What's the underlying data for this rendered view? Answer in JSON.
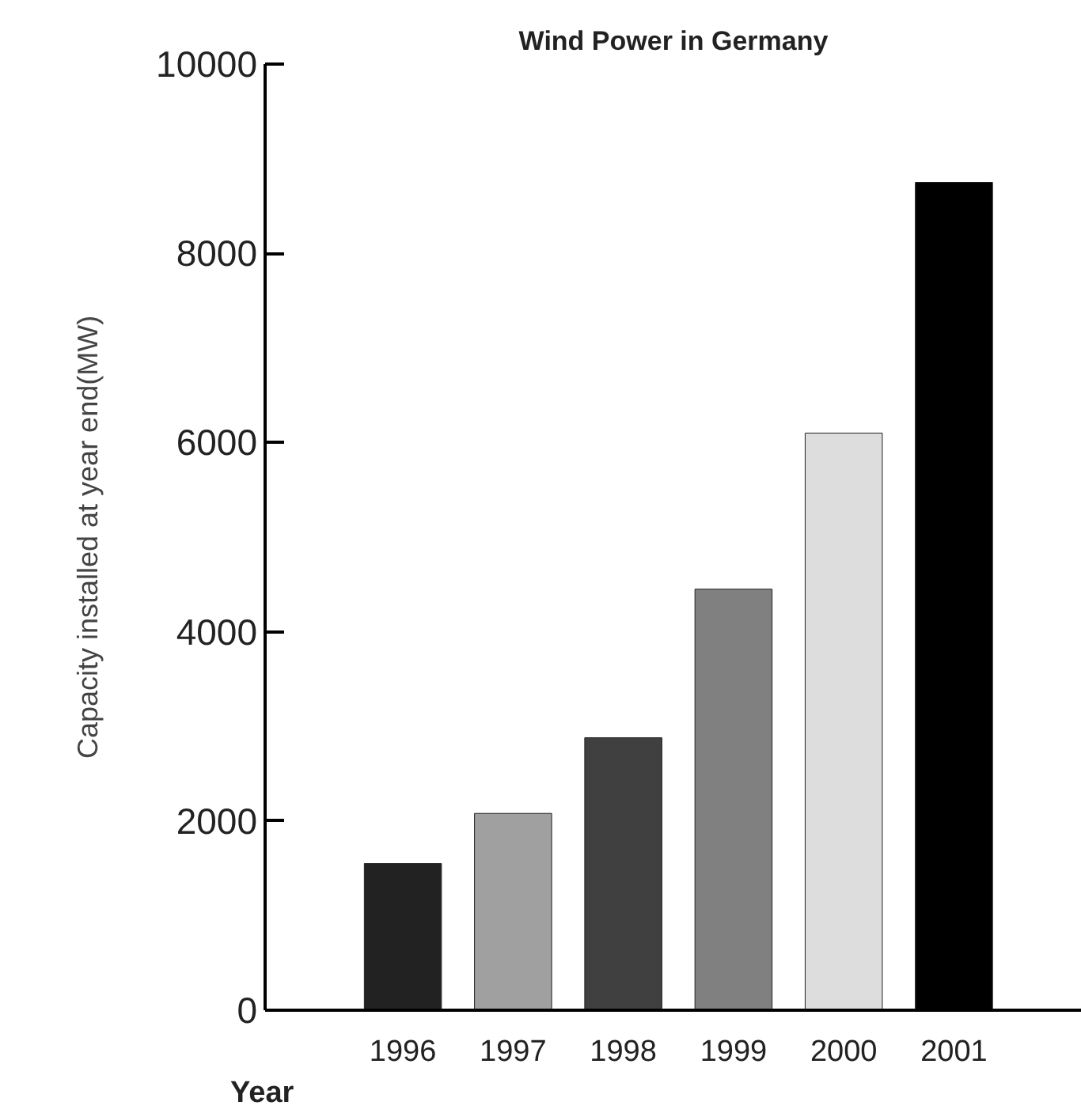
{
  "chart_data": {
    "type": "bar",
    "title": "Wind Power in Germany",
    "xlabel": "Year",
    "ylabel": "Capacity installed at year end(MW)",
    "categories": [
      "1996",
      "1997",
      "1998",
      "1999",
      "2000",
      "2001"
    ],
    "values": [
      1550,
      2080,
      2880,
      4450,
      6100,
      8750
    ],
    "colors": [
      "#222222",
      "#a0a0a0",
      "#404040",
      "#808080",
      "#dddddd",
      "#000000"
    ],
    "ylim": [
      0,
      10000
    ],
    "yticks": [
      0,
      2000,
      4000,
      6000,
      8000,
      10000
    ],
    "grid": false
  }
}
